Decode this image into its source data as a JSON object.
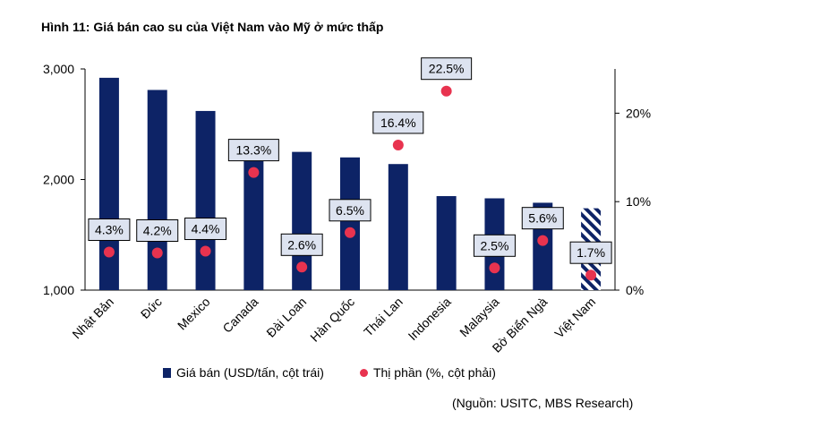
{
  "title": "Hình 11: Giá bán cao su của Việt Nam vào Mỹ ở mức thấp",
  "source": "(Nguồn: USITC, MBS Research)",
  "legend": {
    "bars": "Giá bán (USD/tấn, cột trái)",
    "dots": "Thị phần (%, cột phải)"
  },
  "colors": {
    "bar": "#0d2366",
    "dot": "#e8334f",
    "label_bg": "#dde3f0"
  },
  "chart_data": {
    "type": "bar",
    "categories": [
      "Nhật Bản",
      "Đức",
      "Mexico",
      "Canada",
      "Đài Loan",
      "Hàn Quốc",
      "Thái Lan",
      "Indonesia",
      "Malaysia",
      "Bờ Biển Ngà",
      "Việt Nam"
    ],
    "series": [
      {
        "name": "Giá bán (USD/tấn, cột trái)",
        "axis": "left",
        "type": "bar",
        "values": [
          2920,
          2810,
          2620,
          2170,
          2250,
          2200,
          2140,
          1850,
          1830,
          1790,
          1740
        ]
      },
      {
        "name": "Thị phần (%, cột phải)",
        "axis": "right",
        "type": "scatter",
        "values": [
          4.3,
          4.2,
          4.4,
          13.3,
          2.6,
          6.5,
          16.4,
          22.5,
          2.5,
          5.6,
          1.7
        ],
        "labels": [
          "4.3%",
          "4.2%",
          "4.4%",
          "13.3%",
          "2.6%",
          "6.5%",
          "16.4%",
          "22.5%",
          "2.5%",
          "5.6%",
          "1.7%"
        ]
      }
    ],
    "highlight_category": "Việt Nam",
    "left_axis": {
      "range": [
        1000,
        3000
      ],
      "ticks": [
        1000,
        2000,
        3000
      ],
      "tick_labels": [
        "1,000",
        "2,000",
        "3,000"
      ]
    },
    "right_axis": {
      "range": [
        0,
        25
      ],
      "ticks": [
        0,
        10,
        20
      ],
      "tick_labels": [
        "0%",
        "10%",
        "20%"
      ]
    }
  }
}
